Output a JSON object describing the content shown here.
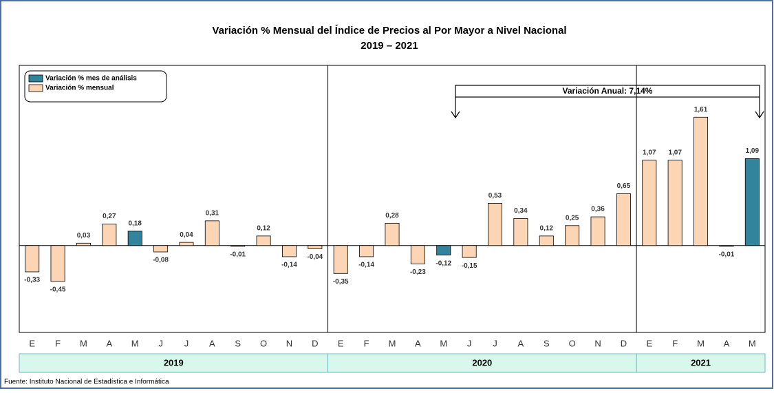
{
  "chart_data": {
    "type": "bar",
    "title": "Variación % Mensual del Índice de Precios al Por Mayor a Nivel Nacional",
    "subtitle": "2019 – 2021",
    "categories": [
      "E",
      "F",
      "M",
      "A",
      "M",
      "J",
      "J",
      "A",
      "S",
      "O",
      "N",
      "D",
      "E",
      "F",
      "M",
      "A",
      "M",
      "J",
      "J",
      "A",
      "S",
      "O",
      "N",
      "D",
      "E",
      "F",
      "M",
      "A",
      "M"
    ],
    "years": [
      "2019",
      "2020",
      "2021"
    ],
    "series": [
      {
        "name": "Variación % mes de análisis",
        "color": "#31849b",
        "values": [
          null,
          null,
          null,
          null,
          0.18,
          null,
          null,
          null,
          null,
          null,
          null,
          null,
          null,
          null,
          null,
          null,
          -0.12,
          null,
          null,
          null,
          null,
          null,
          null,
          null,
          null,
          null,
          null,
          null,
          1.09
        ],
        "value_labels": [
          null,
          null,
          null,
          null,
          "0,18",
          null,
          null,
          null,
          null,
          null,
          null,
          null,
          null,
          null,
          null,
          null,
          "-0,12",
          null,
          null,
          null,
          null,
          null,
          null,
          null,
          null,
          null,
          null,
          null,
          "1,09"
        ]
      },
      {
        "name": "Variación % mensual",
        "color": "#fcd5b4",
        "values": [
          -0.33,
          -0.45,
          0.03,
          0.27,
          null,
          -0.08,
          0.04,
          0.31,
          -0.01,
          0.12,
          -0.14,
          -0.04,
          -0.35,
          -0.14,
          0.28,
          -0.23,
          null,
          -0.15,
          0.53,
          0.34,
          0.12,
          0.25,
          0.36,
          0.65,
          1.07,
          1.07,
          1.61,
          -0.01,
          null
        ],
        "value_labels": [
          "-0,33",
          "-0,45",
          "0,03",
          "0,27",
          null,
          "-0,08",
          "0,04",
          "0,31",
          "-0,01",
          "0,12",
          "-0,14",
          "-0,04",
          "-0,35",
          "-0,14",
          "0,28",
          "-0,23",
          null,
          "-0,15",
          "0,53",
          "0,34",
          "0,12",
          "0,25",
          "0,36",
          "0,65",
          "1,07",
          "1,07",
          "1,61",
          "-0,01",
          null
        ]
      }
    ],
    "annotation": "Variación Anual: 7,14%",
    "source": "Fuente: Instituto  Nacional de Estadística  e Informática",
    "ylim": [
      -1.09,
      2.26
    ],
    "legend": "upper left"
  }
}
